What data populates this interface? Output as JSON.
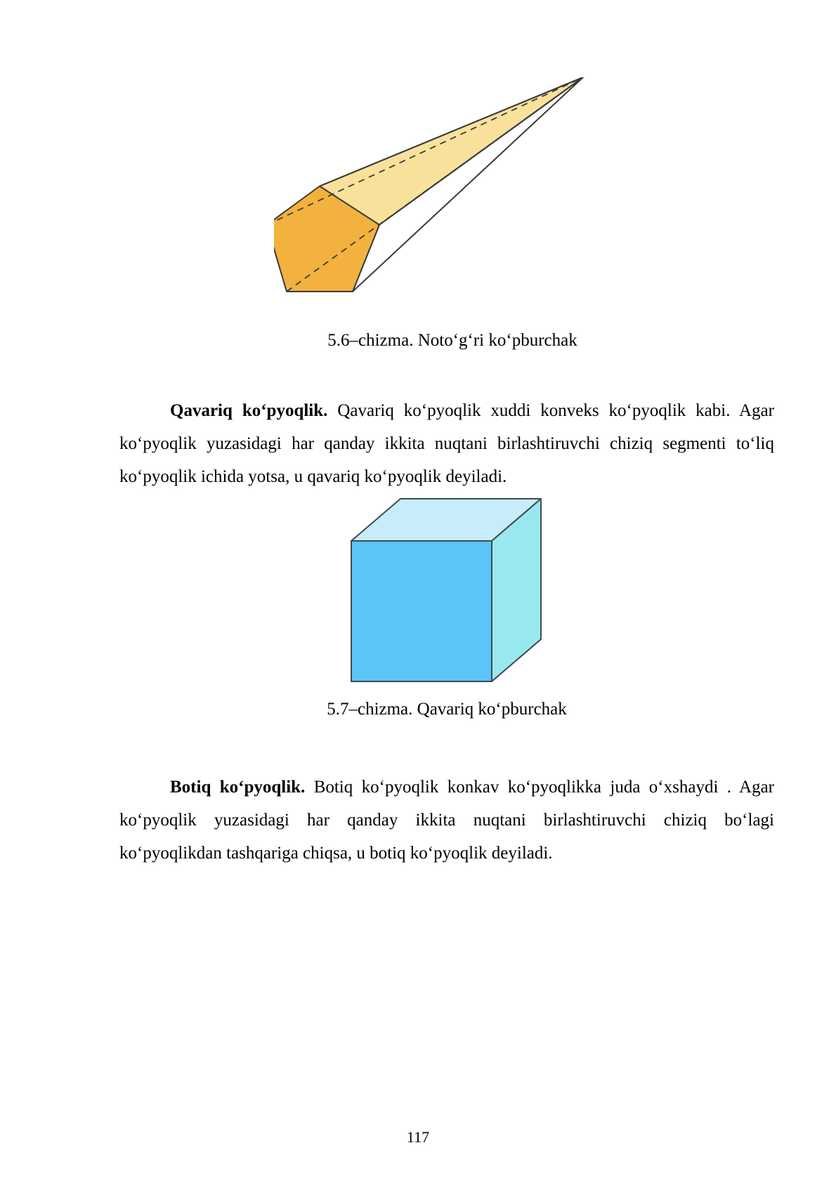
{
  "figures": [
    {
      "caption": "5.6–chizma. Noto‘g‘ri ko‘pburchak",
      "colors": {
        "base": "#f3b23d",
        "side": "#f8e29b",
        "edge": "#3a3a3a"
      }
    },
    {
      "caption": "5.7–chizma. Qavariq ko‘pburchak",
      "colors": {
        "front": "#5bc5f8",
        "top": "#c7edfb",
        "side": "#98e9ef",
        "edge": "#3f4a4f"
      }
    }
  ],
  "paragraphs": [
    {
      "term": "Qavariq ko‘pyoqlik.",
      "text": "Qavariq ko‘pyoqlik xuddi konveks ko‘pyoqlik kabi. Agar ko‘pyoqlik yuzasidagi har qanday ikkita nuqtani birlashtiruvchi chiziq segmenti to‘liq ko‘pyoqlik ichida yotsa, u qavariq ko‘pyoqlik deyiladi."
    },
    {
      "term": "Botiq ko‘pyoqlik.",
      "text": "Botiq ko‘pyoqlik konkav ko‘pyoqlikka juda o‘xshaydi . Agar ko‘pyoqlik yuzasidagi har qanday ikkita nuqtani birlashtiruvchi chiziq bo‘lagi ko‘pyoqlikdan tashqariga chiqsa, u botiq ko‘pyoqlik deyiladi."
    }
  ],
  "page_number": "117"
}
